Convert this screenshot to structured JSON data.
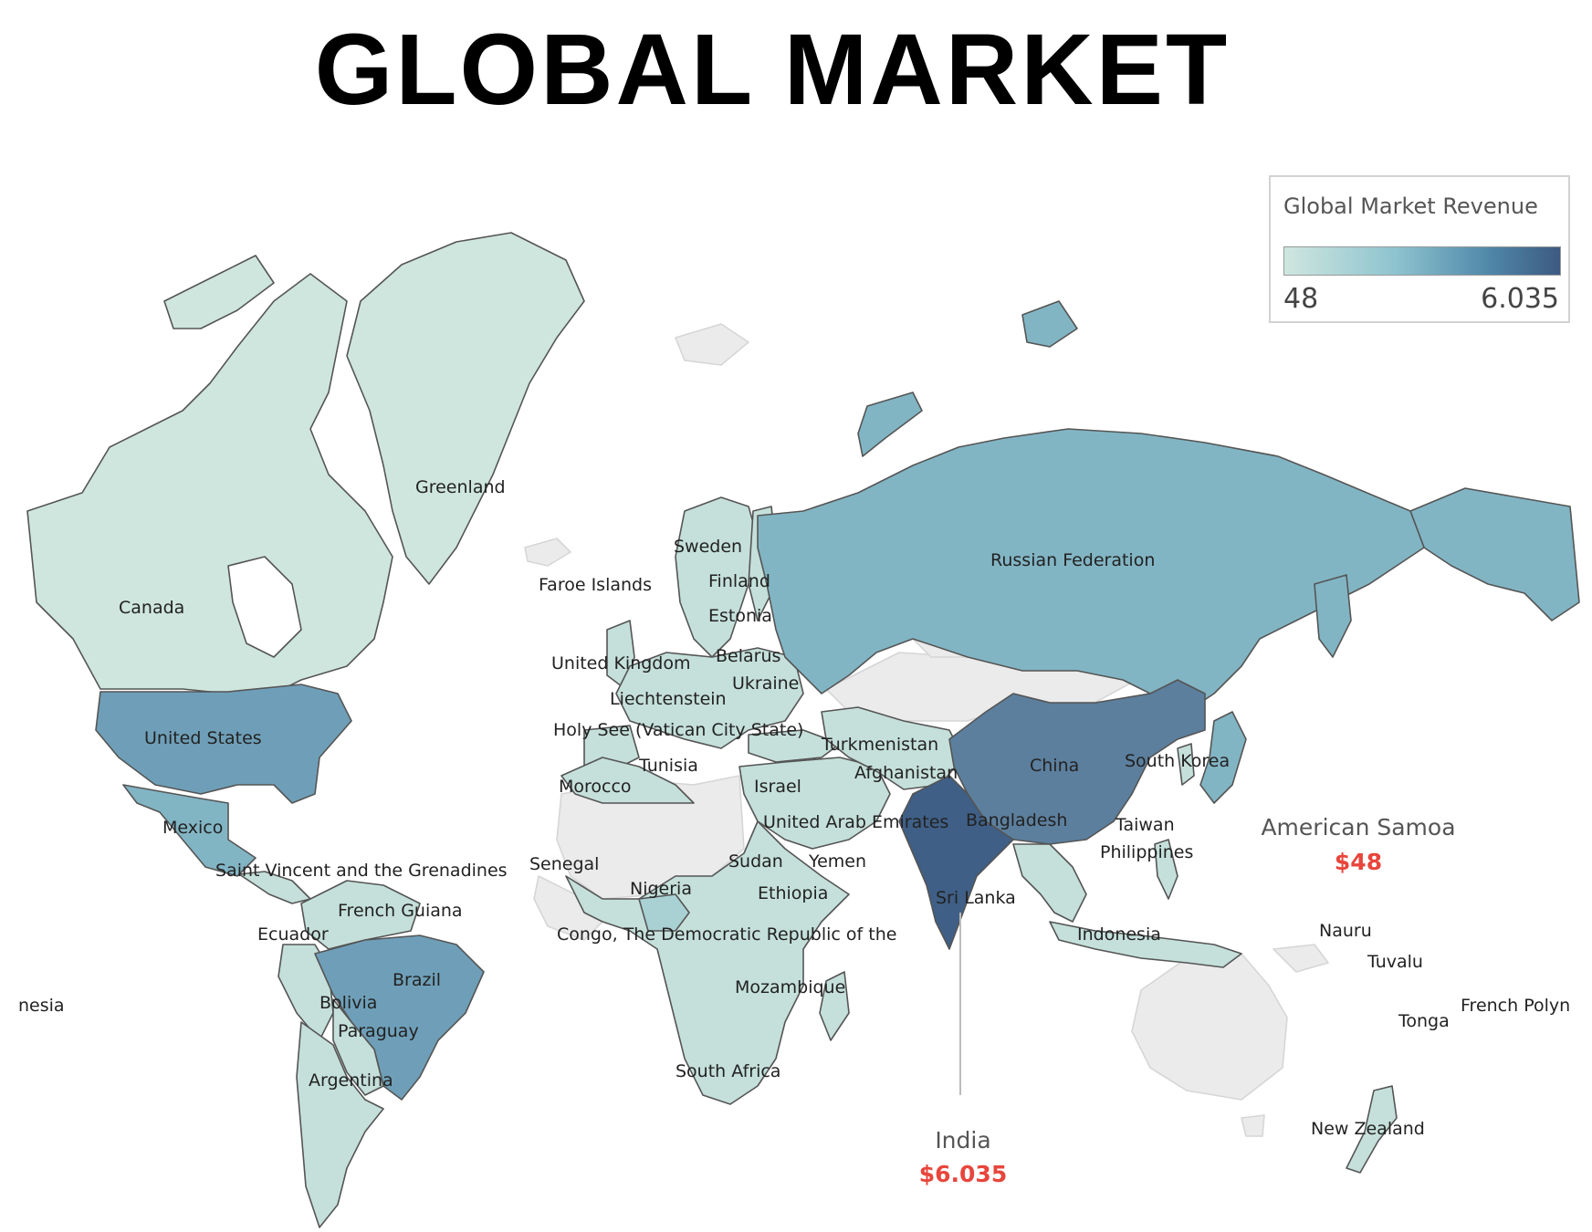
{
  "title": "GLOBAL MARKET",
  "legend": {
    "title": "Global Market Revenue",
    "min_label": "48",
    "max_label": "6.035",
    "colors": [
      "#cfe6df",
      "#8ec4cf",
      "#4f86a8",
      "#3d5a82"
    ]
  },
  "callouts": {
    "american_samoa": {
      "name": "American Samoa",
      "value": "$48"
    },
    "india": {
      "name": "India",
      "value": "$6.035"
    }
  },
  "country_labels": [
    "Greenland",
    "Canada",
    "United States",
    "Mexico",
    "Saint Vincent and the Grenadines",
    "French Guiana",
    "Ecuador",
    "Brazil",
    "Bolivia",
    "Paraguay",
    "Argentina",
    "nesia",
    "Sweden",
    "Faroe Islands",
    "Finland",
    "Estonia",
    "United Kingdom",
    "Belarus",
    "Ukraine",
    "Liechtenstein",
    "Holy See (Vatican City State)",
    "Tunisia",
    "Morocco",
    "Israel",
    "Turkmenistan",
    "Afghanistan",
    "United Arab Emirates",
    "Senegal",
    "Sudan",
    "Yemen",
    "Nigeria",
    "Ethiopia",
    "Congo, The Democratic Republic of the",
    "Mozambique",
    "South Africa",
    "Russian Federation",
    "China",
    "South Korea",
    "Bangladesh",
    "Taiwan",
    "Philippines",
    "Sri Lanka",
    "Indonesia",
    "Nauru",
    "Tuvalu",
    "Tonga",
    "French Polyn",
    "New Zealand"
  ],
  "shade_levels": {
    "light": "#cfe6df",
    "light2": "#c5e0da",
    "mid_light": "#a9d1d4",
    "mid": "#82b5c4",
    "mid_dark": "#6f9fb8",
    "dark": "#5c7f9d",
    "darkest": "#3f5f86",
    "nodata": "#ebebeb"
  }
}
